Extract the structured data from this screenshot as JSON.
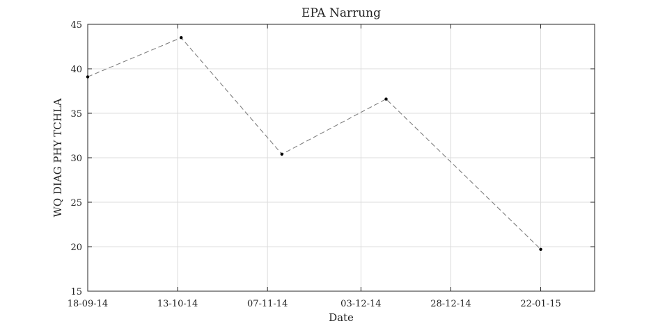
{
  "chart_data": {
    "type": "line",
    "title": "EPA Narrung",
    "xlabel": "Date",
    "ylabel": "WQ DIAG PHY TCHLA",
    "x_tick_labels": [
      "18-09-14",
      "13-10-14",
      "07-11-14",
      "03-12-14",
      "28-12-14",
      "22-01-15"
    ],
    "x_range": [
      "2014-09-18",
      "2015-02-06"
    ],
    "ylim": [
      15,
      45
    ],
    "y_ticks": [
      15,
      20,
      25,
      30,
      35,
      40,
      45
    ],
    "grid": true,
    "series": [
      {
        "line_style": "dashed",
        "line_color": "#7f7f7f",
        "marker_color": "#000000",
        "points": [
          {
            "x": "2014-09-18",
            "y": 39.1
          },
          {
            "x": "2014-10-14",
            "y": 43.5
          },
          {
            "x": "2014-11-11",
            "y": 30.4
          },
          {
            "x": "2014-12-10",
            "y": 36.6
          },
          {
            "x": "2015-01-22",
            "y": 19.7
          }
        ]
      }
    ]
  }
}
